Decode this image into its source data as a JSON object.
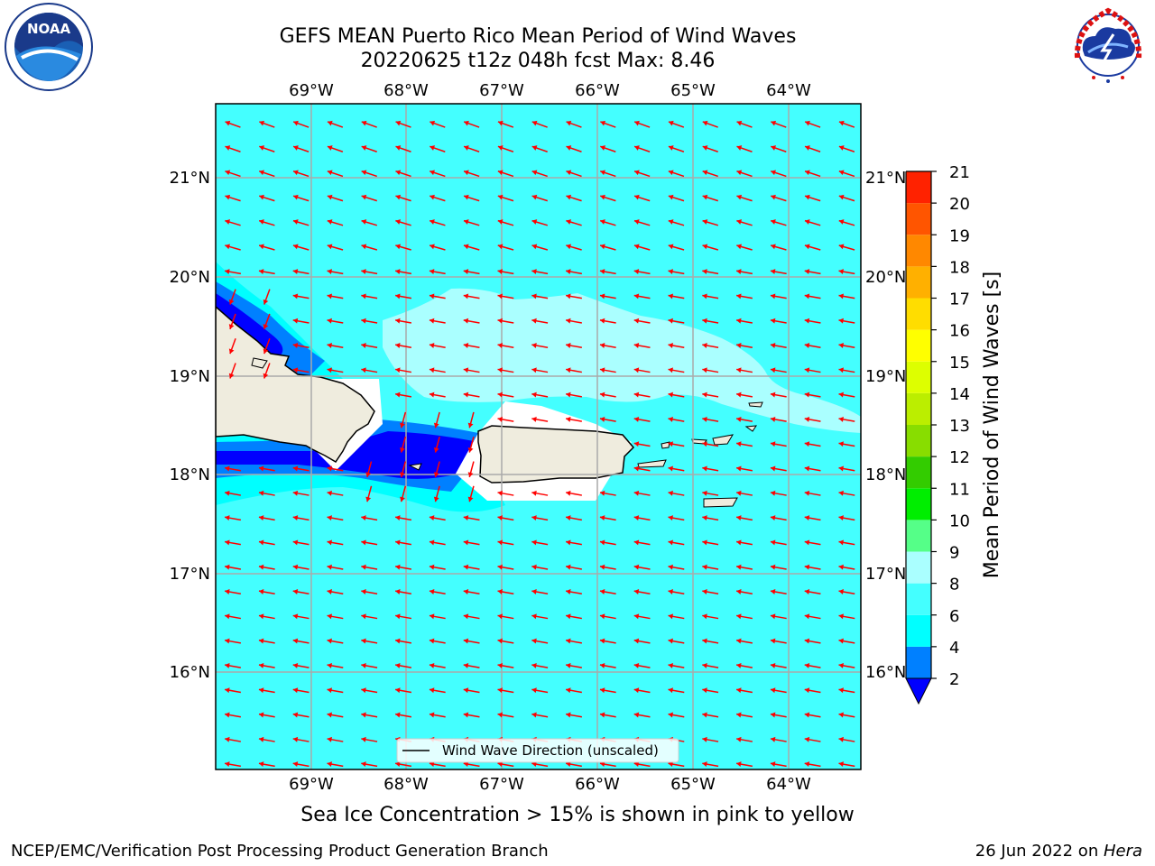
{
  "title": {
    "line1": "GEFS MEAN Puerto Rico Mean Period of Wind Waves",
    "line2": "20220625 t12z 048h fcst   Max: 8.46"
  },
  "map": {
    "lon_ticks": [
      "69°W",
      "68°W",
      "67°W",
      "66°W",
      "65°W",
      "64°W"
    ],
    "lat_ticks": [
      "21°N",
      "20°N",
      "19°N",
      "18°N",
      "17°N",
      "16°N"
    ],
    "legend_label": "Wind Wave Direction (unscaled)",
    "arrow_color": "#ff0000",
    "land_color": "#efecde",
    "sea_color": "#44ffff"
  },
  "colorbar": {
    "label": "Mean Period of Wind Waves [s]",
    "ticks": [
      "2",
      "4",
      "6",
      "8",
      "9",
      "10",
      "11",
      "12",
      "13",
      "14",
      "15",
      "16",
      "17",
      "18",
      "19",
      "20",
      "21"
    ],
    "colors": [
      "#0000ff",
      "#0080ff",
      "#00ffff",
      "#44ffff",
      "#aaffff",
      "#55ff88",
      "#00ee00",
      "#33cc00",
      "#88dd00",
      "#bbee00",
      "#ddff00",
      "#ffff00",
      "#ffdd00",
      "#ffb000",
      "#ff8800",
      "#ff5500",
      "#ff2200",
      "#ff0000"
    ]
  },
  "subnote": "Sea Ice Concentration > 15% is shown in pink to yellow",
  "footer": {
    "left": "NCEP/EMC/Verification Post Processing Product Generation Branch",
    "date": "26 Jun 2022 on ",
    "host": "Hera"
  },
  "logos": {
    "noaa": "NOAA",
    "nws_text": "NATIONAL WEATHER SERVICE"
  }
}
